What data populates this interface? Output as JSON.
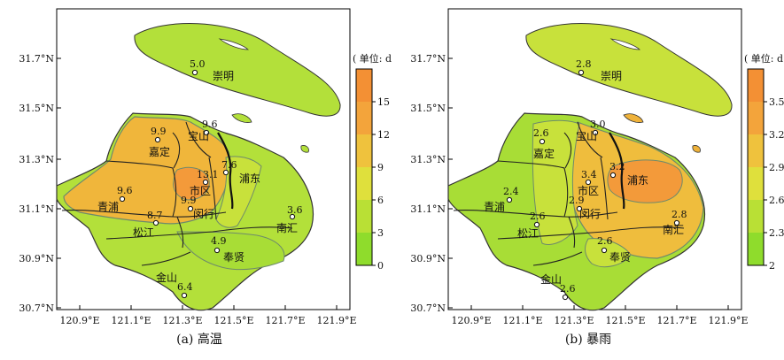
{
  "panels": [
    {
      "id": "a",
      "caption": "(a) 高温",
      "unit_label": "( 单位: d )",
      "colorbar_ticks": [
        "0",
        "3",
        "6",
        "9",
        "12",
        "15"
      ],
      "colorbar_colors": [
        "#8fdc2c",
        "#b9e035",
        "#dfe03c",
        "#efc23d",
        "#f3a43b",
        "#f39034"
      ],
      "x_ticks": [
        "120.9°E",
        "121.1°E",
        "121.3°E",
        "121.5°E",
        "121.7°E",
        "121.9°E"
      ],
      "y_ticks": [
        "31.7°N",
        "31.5°N",
        "31.3°N",
        "31.1°N",
        "30.9°N",
        "30.7°N"
      ],
      "district_names": [
        "崇明",
        "宝山",
        "嘉定",
        "浦东",
        "市区",
        "青浦",
        "闵行",
        "松江",
        "南汇",
        "奉贤",
        "金山"
      ],
      "station_values": [
        "5.0",
        "9.6",
        "9.9",
        "13.1",
        "7.6",
        "9.6",
        "9.9",
        "8.7",
        "3.6",
        "4.9",
        "6.4"
      ]
    },
    {
      "id": "b",
      "caption": "(b) 暴雨",
      "unit_label": "( 单位: d )",
      "colorbar_ticks": [
        "2",
        "2.3",
        "2.6",
        "2.9",
        "3.2",
        "3.5"
      ],
      "colorbar_colors": [
        "#8fdc2c",
        "#b9e035",
        "#dfe03c",
        "#efc23d",
        "#f3a43b",
        "#f39034"
      ],
      "x_ticks": [
        "120.9°E",
        "121.1°E",
        "121.3°E",
        "121.5°E",
        "121.7°E",
        "121.9°E"
      ],
      "y_ticks": [
        "31.7°N",
        "31.5°N",
        "31.3°N",
        "31.1°N",
        "30.9°N",
        "30.7°N"
      ],
      "district_names": [
        "崇明",
        "宝山",
        "嘉定",
        "浦东",
        "市区",
        "青浦",
        "闵行",
        "松江",
        "南汇",
        "奉贤",
        "金山"
      ],
      "station_values": [
        "2.8",
        "3.0",
        "2.6",
        "3.4",
        "3.2",
        "2.4",
        "2.9",
        "2.6",
        "2.8",
        "2.6",
        "2.6"
      ]
    }
  ]
}
